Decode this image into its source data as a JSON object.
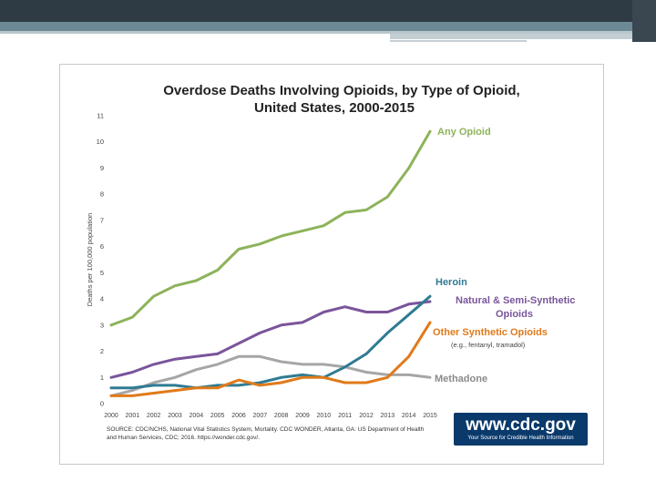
{
  "chart_data": {
    "type": "line",
    "title": "Overdose Deaths Involving Opioids, by Type of Opioid,",
    "title_line2": "United States, 2000-2015",
    "xlabel": "",
    "ylabel": "Deaths per 100,000 population",
    "x": [
      2000,
      2001,
      2002,
      2003,
      2004,
      2005,
      2006,
      2007,
      2008,
      2009,
      2010,
      2011,
      2012,
      2013,
      2014,
      2015
    ],
    "xticks": [
      "2000",
      "2001",
      "2002",
      "2003",
      "2004",
      "2005",
      "2006",
      "2007",
      "2008",
      "2009",
      "2010",
      "2011",
      "2012",
      "2013",
      "2014",
      "2015"
    ],
    "yticks": [
      "0",
      "1",
      "2",
      "3",
      "4",
      "5",
      "6",
      "7",
      "8",
      "9",
      "10",
      "11"
    ],
    "ylim": [
      0,
      11
    ],
    "grid": false,
    "series": [
      {
        "name": "Any Opioid",
        "color": "#8db35a",
        "values": [
          3.0,
          3.3,
          4.1,
          4.5,
          4.7,
          5.1,
          5.9,
          6.1,
          6.4,
          6.6,
          6.8,
          7.3,
          7.4,
          7.9,
          9.0,
          10.4
        ]
      },
      {
        "name": "Natural & Semi-Synthetic Opioids",
        "color": "#7a559a",
        "values": [
          1.0,
          1.2,
          1.5,
          1.7,
          1.8,
          1.9,
          2.3,
          2.7,
          3.0,
          3.1,
          3.5,
          3.7,
          3.5,
          3.5,
          3.8,
          3.9
        ]
      },
      {
        "name": "Methadone",
        "color": "#a6a6a6",
        "values": [
          0.3,
          0.5,
          0.8,
          1.0,
          1.3,
          1.5,
          1.8,
          1.8,
          1.6,
          1.5,
          1.5,
          1.4,
          1.2,
          1.1,
          1.1,
          1.0
        ]
      },
      {
        "name": "Heroin",
        "color": "#2f7b93",
        "values": [
          0.6,
          0.6,
          0.7,
          0.7,
          0.6,
          0.7,
          0.7,
          0.8,
          1.0,
          1.1,
          1.0,
          1.4,
          1.9,
          2.7,
          3.4,
          4.1
        ]
      },
      {
        "name": "Other Synthetic Opioids",
        "color": "#e07a1a",
        "values": [
          0.3,
          0.3,
          0.4,
          0.5,
          0.6,
          0.6,
          0.9,
          0.7,
          0.8,
          1.0,
          1.0,
          0.8,
          0.8,
          1.0,
          1.8,
          3.1
        ]
      }
    ],
    "labels": {
      "any": "Any Opioid",
      "heroin": "Heroin",
      "natural1": "Natural & Semi-Synthetic",
      "natural2": "Opioids",
      "other": "Other Synthetic Opioids",
      "other_note": "(e.g., fentanyl, tramadol)",
      "methadone": "Methadone"
    },
    "source_line1": "SOURCE: CDC/NCHS, National Vital Statistics System, Mortality. CDC WONDER, Atlanta, GA: US Department of Health",
    "source_line2": "and Human Services, CDC; 2016. https://wonder.cdc.gov/."
  },
  "branding": {
    "url": "www.cdc.gov",
    "tagline": "Your Source for Credible Health Information"
  }
}
